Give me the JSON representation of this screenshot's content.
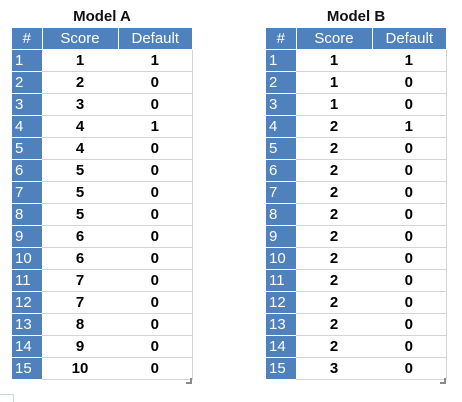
{
  "headers": [
    "#",
    "Score",
    "Default"
  ],
  "model_a": {
    "title": "Model A",
    "rows": [
      {
        "idx": "1",
        "score": "1",
        "default": "1"
      },
      {
        "idx": "2",
        "score": "2",
        "default": "0"
      },
      {
        "idx": "3",
        "score": "3",
        "default": "0"
      },
      {
        "idx": "4",
        "score": "4",
        "default": "1"
      },
      {
        "idx": "5",
        "score": "4",
        "default": "0"
      },
      {
        "idx": "6",
        "score": "5",
        "default": "0"
      },
      {
        "idx": "7",
        "score": "5",
        "default": "0"
      },
      {
        "idx": "8",
        "score": "5",
        "default": "0"
      },
      {
        "idx": "9",
        "score": "6",
        "default": "0"
      },
      {
        "idx": "10",
        "score": "6",
        "default": "0"
      },
      {
        "idx": "11",
        "score": "7",
        "default": "0"
      },
      {
        "idx": "12",
        "score": "7",
        "default": "0"
      },
      {
        "idx": "13",
        "score": "8",
        "default": "0"
      },
      {
        "idx": "14",
        "score": "9",
        "default": "0"
      },
      {
        "idx": "15",
        "score": "10",
        "default": "0"
      }
    ]
  },
  "model_b": {
    "title": "Model B",
    "rows": [
      {
        "idx": "1",
        "score": "1",
        "default": "1"
      },
      {
        "idx": "2",
        "score": "1",
        "default": "0"
      },
      {
        "idx": "3",
        "score": "1",
        "default": "0"
      },
      {
        "idx": "4",
        "score": "2",
        "default": "1"
      },
      {
        "idx": "5",
        "score": "2",
        "default": "0"
      },
      {
        "idx": "6",
        "score": "2",
        "default": "0"
      },
      {
        "idx": "7",
        "score": "2",
        "default": "0"
      },
      {
        "idx": "8",
        "score": "2",
        "default": "0"
      },
      {
        "idx": "9",
        "score": "2",
        "default": "0"
      },
      {
        "idx": "10",
        "score": "2",
        "default": "0"
      },
      {
        "idx": "11",
        "score": "2",
        "default": "0"
      },
      {
        "idx": "12",
        "score": "2",
        "default": "0"
      },
      {
        "idx": "13",
        "score": "2",
        "default": "0"
      },
      {
        "idx": "14",
        "score": "2",
        "default": "0"
      },
      {
        "idx": "15",
        "score": "3",
        "default": "0"
      }
    ]
  },
  "colors": {
    "header": "#4f81bd",
    "header_text": "#ffffff"
  }
}
